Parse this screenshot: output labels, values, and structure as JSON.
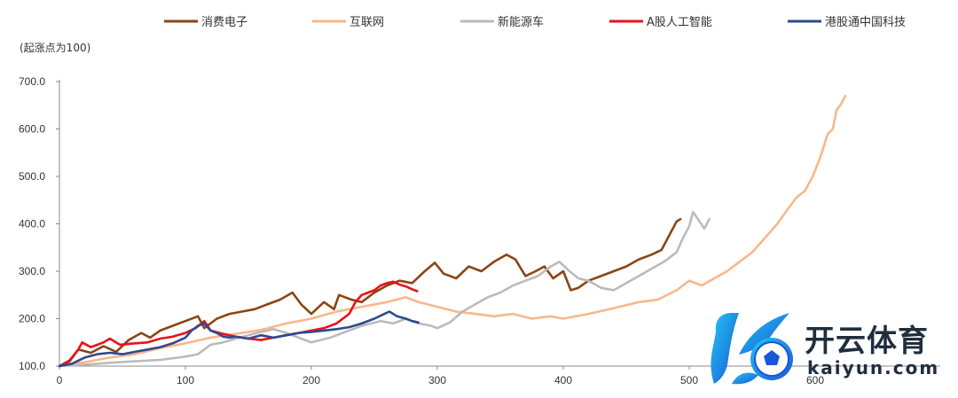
{
  "chart_data": {
    "type": "line",
    "unit_label": "(起涨点为100)",
    "ylim": [
      100,
      700
    ],
    "yticks": [
      100,
      200,
      300,
      400,
      500,
      600,
      700
    ],
    "ytick_labels": [
      "100.0",
      "200.0",
      "300.0",
      "400.0",
      "500.0",
      "600.0",
      "700.0"
    ],
    "xlim": [
      0,
      620
    ],
    "xticks": [
      0,
      100,
      200,
      300,
      400,
      500,
      600
    ],
    "xtick_labels": [
      "0",
      "100",
      "200",
      "300",
      "400",
      "500",
      "600"
    ],
    "grid": false,
    "legend_position": "top",
    "series": [
      {
        "name": "消费电子",
        "color": "#8B4513",
        "points": [
          [
            0,
            100
          ],
          [
            8,
            112
          ],
          [
            15,
            135
          ],
          [
            25,
            128
          ],
          [
            35,
            142
          ],
          [
            45,
            130
          ],
          [
            55,
            155
          ],
          [
            65,
            170
          ],
          [
            72,
            160
          ],
          [
            80,
            175
          ],
          [
            90,
            185
          ],
          [
            100,
            195
          ],
          [
            110,
            205
          ],
          [
            115,
            180
          ],
          [
            125,
            200
          ],
          [
            135,
            210
          ],
          [
            145,
            215
          ],
          [
            155,
            220
          ],
          [
            165,
            230
          ],
          [
            175,
            240
          ],
          [
            185,
            255
          ],
          [
            192,
            230
          ],
          [
            200,
            210
          ],
          [
            210,
            235
          ],
          [
            218,
            220
          ],
          [
            222,
            250
          ],
          [
            232,
            240
          ],
          [
            240,
            235
          ],
          [
            250,
            255
          ],
          [
            260,
            270
          ],
          [
            270,
            280
          ],
          [
            280,
            275
          ],
          [
            290,
            300
          ],
          [
            298,
            318
          ],
          [
            305,
            295
          ],
          [
            315,
            285
          ],
          [
            325,
            310
          ],
          [
            335,
            300
          ],
          [
            345,
            320
          ],
          [
            355,
            335
          ],
          [
            362,
            325
          ],
          [
            370,
            290
          ],
          [
            378,
            300
          ],
          [
            385,
            310
          ],
          [
            392,
            285
          ],
          [
            400,
            300
          ],
          [
            406,
            260
          ],
          [
            412,
            265
          ],
          [
            420,
            280
          ],
          [
            430,
            290
          ],
          [
            440,
            300
          ],
          [
            450,
            310
          ],
          [
            460,
            325
          ],
          [
            470,
            335
          ],
          [
            478,
            345
          ],
          [
            485,
            380
          ],
          [
            490,
            405
          ],
          [
            493,
            410
          ]
        ]
      },
      {
        "name": "互联网",
        "color": "#F8B88B",
        "points": [
          [
            0,
            100
          ],
          [
            20,
            108
          ],
          [
            40,
            118
          ],
          [
            60,
            125
          ],
          [
            80,
            138
          ],
          [
            100,
            148
          ],
          [
            120,
            160
          ],
          [
            140,
            168
          ],
          [
            160,
            176
          ],
          [
            180,
            190
          ],
          [
            200,
            200
          ],
          [
            220,
            215
          ],
          [
            240,
            225
          ],
          [
            260,
            235
          ],
          [
            275,
            245
          ],
          [
            285,
            235
          ],
          [
            300,
            225
          ],
          [
            315,
            215
          ],
          [
            330,
            210
          ],
          [
            345,
            205
          ],
          [
            360,
            210
          ],
          [
            375,
            200
          ],
          [
            390,
            205
          ],
          [
            400,
            200
          ],
          [
            420,
            210
          ],
          [
            440,
            222
          ],
          [
            460,
            235
          ],
          [
            475,
            240
          ],
          [
            490,
            260
          ],
          [
            500,
            280
          ],
          [
            510,
            270
          ],
          [
            520,
            285
          ],
          [
            530,
            300
          ],
          [
            540,
            320
          ],
          [
            550,
            340
          ],
          [
            560,
            370
          ],
          [
            570,
            400
          ],
          [
            578,
            430
          ],
          [
            585,
            455
          ],
          [
            592,
            470
          ],
          [
            598,
            500
          ],
          [
            604,
            540
          ],
          [
            610,
            590
          ],
          [
            614,
            600
          ],
          [
            617,
            640
          ],
          [
            620,
            650
          ],
          [
            624,
            670
          ]
        ]
      },
      {
        "name": "新能源车",
        "color": "#BBBBBB",
        "points": [
          [
            0,
            100
          ],
          [
            20,
            103
          ],
          [
            40,
            107
          ],
          [
            60,
            110
          ],
          [
            80,
            113
          ],
          [
            100,
            120
          ],
          [
            110,
            125
          ],
          [
            120,
            145
          ],
          [
            130,
            150
          ],
          [
            140,
            158
          ],
          [
            150,
            165
          ],
          [
            160,
            172
          ],
          [
            170,
            178
          ],
          [
            180,
            170
          ],
          [
            190,
            160
          ],
          [
            200,
            150
          ],
          [
            215,
            160
          ],
          [
            230,
            175
          ],
          [
            240,
            185
          ],
          [
            255,
            195
          ],
          [
            265,
            190
          ],
          [
            275,
            200
          ],
          [
            285,
            190
          ],
          [
            295,
            185
          ],
          [
            300,
            180
          ],
          [
            310,
            192
          ],
          [
            320,
            215
          ],
          [
            330,
            230
          ],
          [
            340,
            245
          ],
          [
            350,
            255
          ],
          [
            360,
            270
          ],
          [
            370,
            280
          ],
          [
            380,
            290
          ],
          [
            390,
            310
          ],
          [
            397,
            320
          ],
          [
            405,
            300
          ],
          [
            412,
            285
          ],
          [
            420,
            280
          ],
          [
            430,
            265
          ],
          [
            440,
            260
          ],
          [
            450,
            275
          ],
          [
            460,
            290
          ],
          [
            470,
            305
          ],
          [
            480,
            320
          ],
          [
            490,
            340
          ],
          [
            495,
            370
          ],
          [
            500,
            395
          ],
          [
            503,
            425
          ],
          [
            507,
            410
          ],
          [
            512,
            390
          ],
          [
            516,
            410
          ]
        ]
      },
      {
        "name": "A股人工智能",
        "color": "#E8121B",
        "points": [
          [
            0,
            100
          ],
          [
            8,
            110
          ],
          [
            15,
            135
          ],
          [
            18,
            150
          ],
          [
            25,
            140
          ],
          [
            35,
            150
          ],
          [
            40,
            158
          ],
          [
            48,
            145
          ],
          [
            60,
            148
          ],
          [
            70,
            150
          ],
          [
            80,
            158
          ],
          [
            90,
            162
          ],
          [
            100,
            170
          ],
          [
            108,
            180
          ],
          [
            115,
            195
          ],
          [
            120,
            175
          ],
          [
            130,
            168
          ],
          [
            140,
            162
          ],
          [
            150,
            158
          ],
          [
            160,
            155
          ],
          [
            170,
            160
          ],
          [
            180,
            165
          ],
          [
            190,
            170
          ],
          [
            200,
            175
          ],
          [
            210,
            180
          ],
          [
            220,
            190
          ],
          [
            230,
            210
          ],
          [
            235,
            235
          ],
          [
            240,
            250
          ],
          [
            245,
            255
          ],
          [
            250,
            260
          ],
          [
            255,
            270
          ],
          [
            260,
            275
          ],
          [
            265,
            278
          ],
          [
            270,
            272
          ],
          [
            275,
            268
          ],
          [
            280,
            262
          ],
          [
            284,
            258
          ]
        ]
      },
      {
        "name": "港股通中国科技",
        "color": "#2E4A8E",
        "points": [
          [
            0,
            100
          ],
          [
            10,
            105
          ],
          [
            20,
            118
          ],
          [
            30,
            125
          ],
          [
            40,
            128
          ],
          [
            50,
            125
          ],
          [
            60,
            130
          ],
          [
            70,
            135
          ],
          [
            80,
            140
          ],
          [
            90,
            148
          ],
          [
            100,
            160
          ],
          [
            105,
            175
          ],
          [
            110,
            185
          ],
          [
            115,
            190
          ],
          [
            120,
            175
          ],
          [
            125,
            170
          ],
          [
            130,
            162
          ],
          [
            135,
            160
          ],
          [
            140,
            162
          ],
          [
            150,
            158
          ],
          [
            160,
            165
          ],
          [
            170,
            160
          ],
          [
            180,
            165
          ],
          [
            190,
            170
          ],
          [
            200,
            172
          ],
          [
            210,
            175
          ],
          [
            220,
            178
          ],
          [
            230,
            182
          ],
          [
            240,
            190
          ],
          [
            250,
            200
          ],
          [
            258,
            210
          ],
          [
            262,
            215
          ],
          [
            268,
            205
          ],
          [
            275,
            200
          ],
          [
            280,
            195
          ],
          [
            285,
            192
          ]
        ]
      }
    ]
  },
  "watermark": {
    "brand_cn": "开云体育",
    "brand_en": "kaiyun.com",
    "icon": "kaiyun-k-football-logo"
  }
}
